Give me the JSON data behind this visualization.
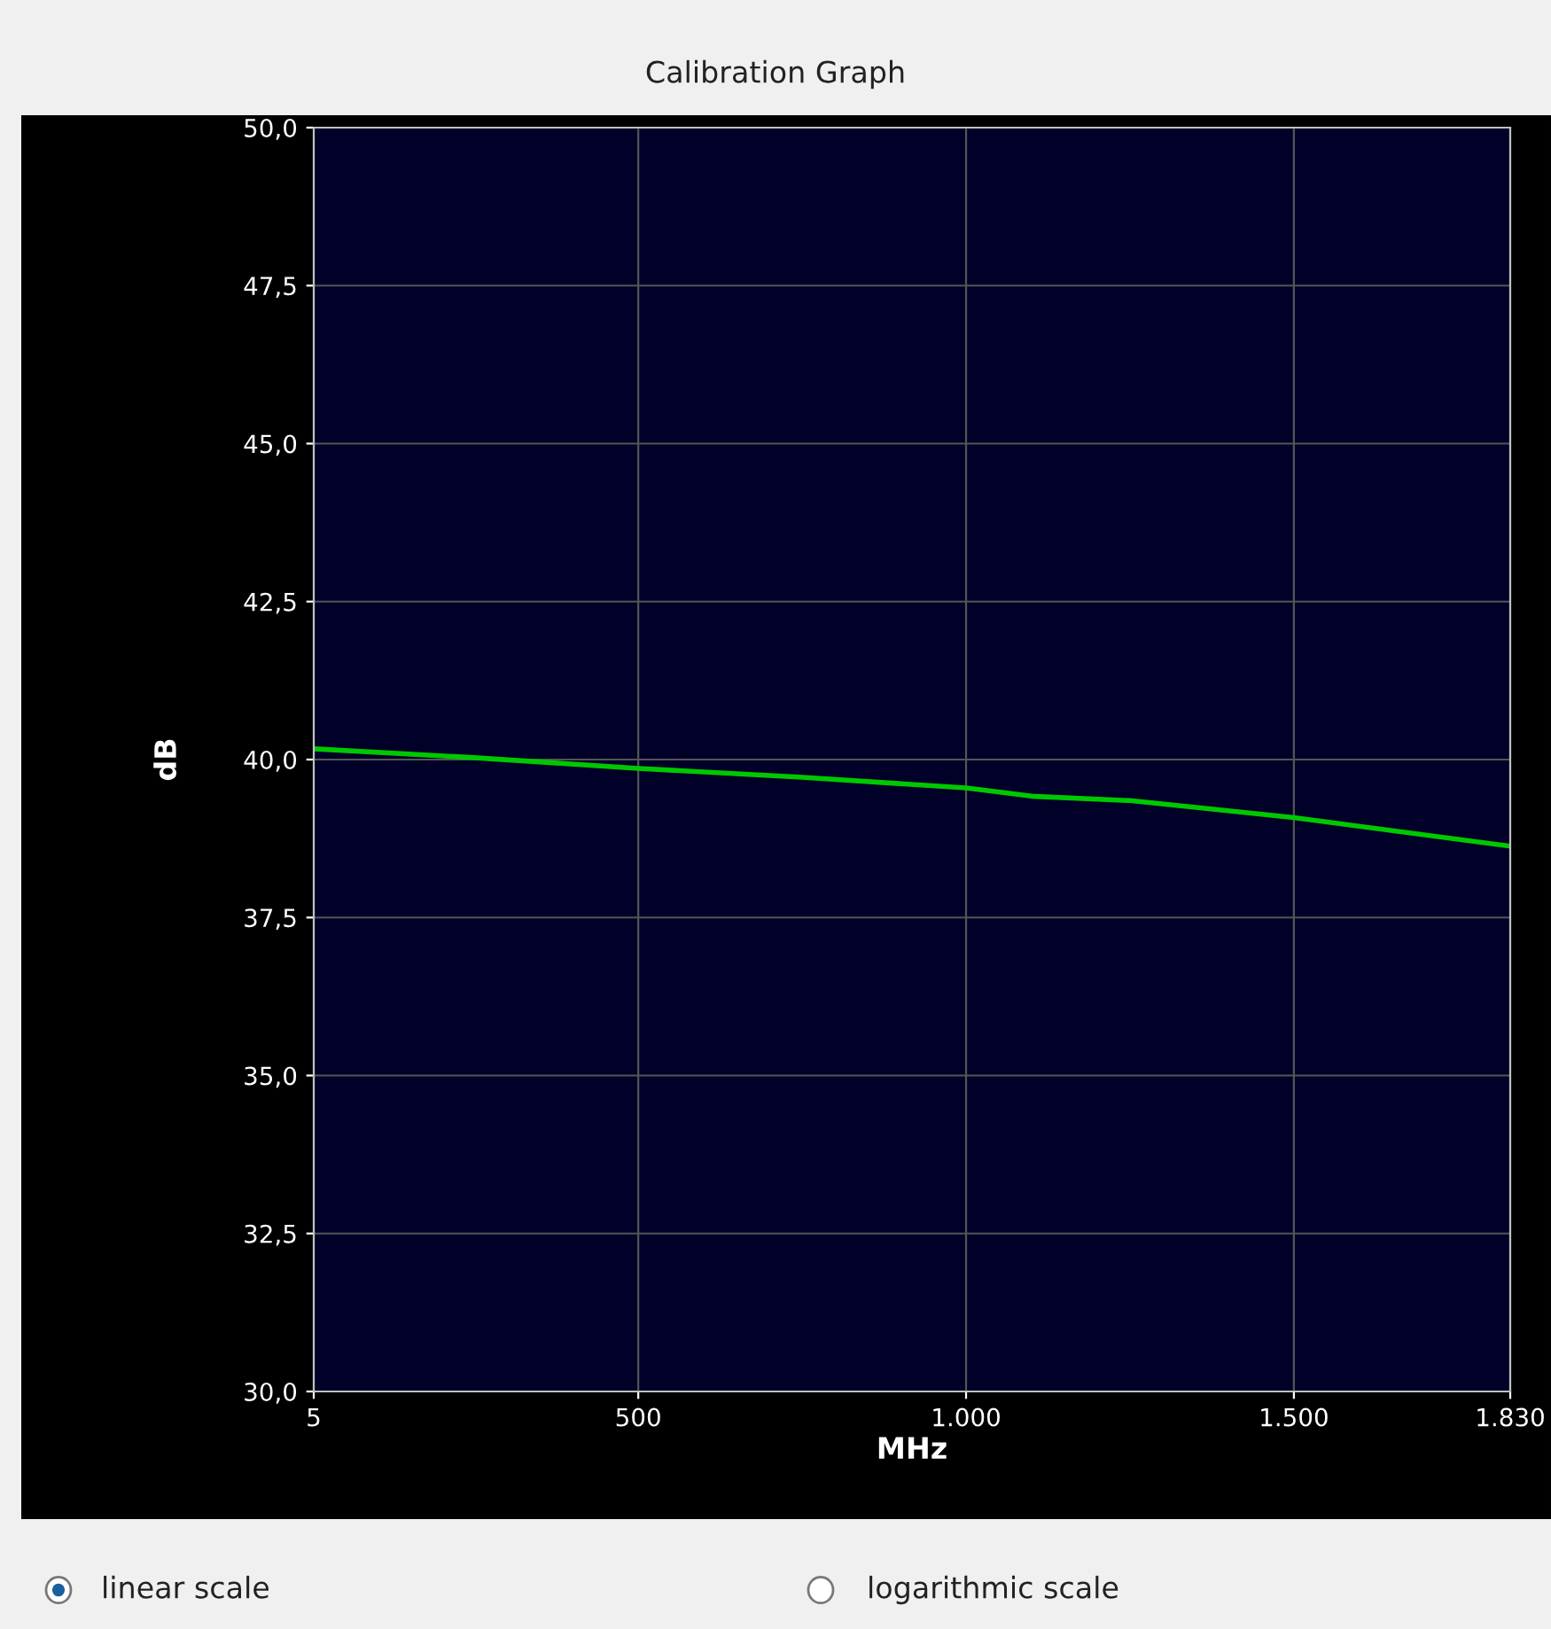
{
  "chart_data": {
    "type": "line",
    "title": "Calibration Graph",
    "xlabel": "MHz",
    "ylabel": "dB",
    "x": [
      5,
      250,
      500,
      750,
      1000,
      1100,
      1250,
      1500,
      1830
    ],
    "series": [
      {
        "color": "#00c800",
        "values": [
          40.17,
          40.03,
          39.86,
          39.72,
          39.55,
          39.42,
          39.35,
          39.08,
          38.63
        ]
      }
    ],
    "xlim": [
      5,
      1830
    ],
    "ylim": [
      30,
      50
    ],
    "xticks": [
      5,
      500,
      {
        "value": 1000,
        "label": "1.000"
      },
      {
        "value": 1500,
        "label": "1.500"
      },
      {
        "value": 1830,
        "label": "1.830"
      }
    ],
    "yticks": [
      {
        "value": 30,
        "label": "30,0"
      },
      {
        "value": 32.5,
        "label": "32,5"
      },
      {
        "value": 35,
        "label": "35,0"
      },
      {
        "value": 37.5,
        "label": "37,5"
      },
      {
        "value": 40,
        "label": "40,0"
      },
      {
        "value": 42.5,
        "label": "42,5"
      },
      {
        "value": 45,
        "label": "45,0"
      },
      {
        "value": 47.5,
        "label": "47,5"
      },
      {
        "value": 50,
        "label": "50,0"
      }
    ],
    "grid": true,
    "legend": false,
    "annotations": [
      "linear scale",
      "logarithmic scale"
    ]
  }
}
